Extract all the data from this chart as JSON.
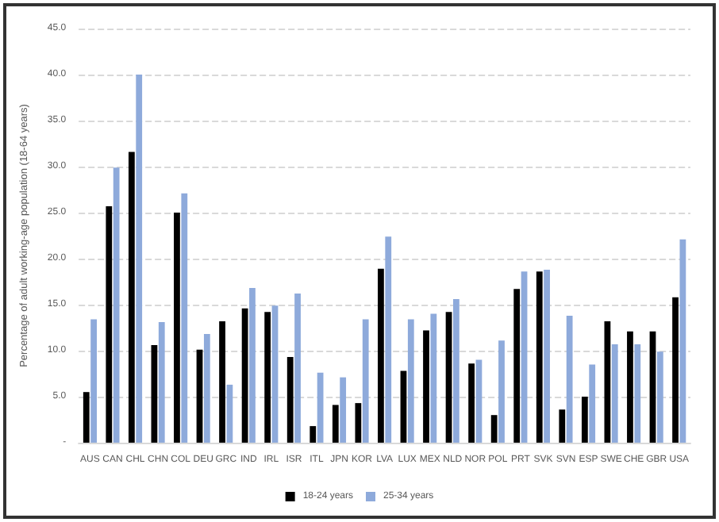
{
  "chart_data": {
    "type": "bar",
    "ylabel": "Percentage of adult working-age population (18-64 years)",
    "categories": [
      "AUS",
      "CAN",
      "CHL",
      "CHN",
      "COL",
      "DEU",
      "GRC",
      "IND",
      "IRL",
      "ISR",
      "ITL",
      "JPN",
      "KOR",
      "LVA",
      "LUX",
      "MEX",
      "NLD",
      "NOR",
      "POL",
      "PRT",
      "SVK",
      "SVN",
      "ESP",
      "SWE",
      "CHE",
      "GBR",
      "USA"
    ],
    "series": [
      {
        "name": "18-24 years",
        "color": "#000000",
        "values": [
          5.5,
          25.7,
          31.6,
          10.6,
          25.0,
          10.1,
          13.2,
          14.6,
          14.2,
          9.3,
          1.8,
          4.1,
          4.3,
          18.9,
          7.8,
          12.2,
          14.2,
          8.6,
          3.0,
          16.7,
          18.6,
          3.6,
          5.0,
          13.2,
          12.1,
          12.1,
          15.8
        ]
      },
      {
        "name": "25-34 years",
        "color": "#8eaadb",
        "values": [
          13.4,
          29.9,
          40.0,
          13.1,
          27.1,
          11.8,
          6.3,
          16.8,
          14.9,
          16.2,
          7.6,
          7.1,
          13.4,
          22.4,
          13.4,
          14.0,
          15.6,
          9.0,
          11.1,
          18.6,
          18.8,
          13.8,
          8.5,
          10.7,
          10.7,
          9.9,
          22.1
        ]
      }
    ],
    "ylim": [
      0,
      45
    ],
    "yticks": [
      {
        "value": 0,
        "label": "-"
      },
      {
        "value": 5,
        "label": "5.0"
      },
      {
        "value": 10,
        "label": "10.0"
      },
      {
        "value": 15,
        "label": "15.0"
      },
      {
        "value": 20,
        "label": "20.0"
      },
      {
        "value": 25,
        "label": "25.0"
      },
      {
        "value": 30,
        "label": "30.0"
      },
      {
        "value": 35,
        "label": "35.0"
      },
      {
        "value": 40,
        "label": "40.0"
      },
      {
        "value": 45,
        "label": "45.0"
      }
    ],
    "grid": "y",
    "legend": "bottom"
  }
}
